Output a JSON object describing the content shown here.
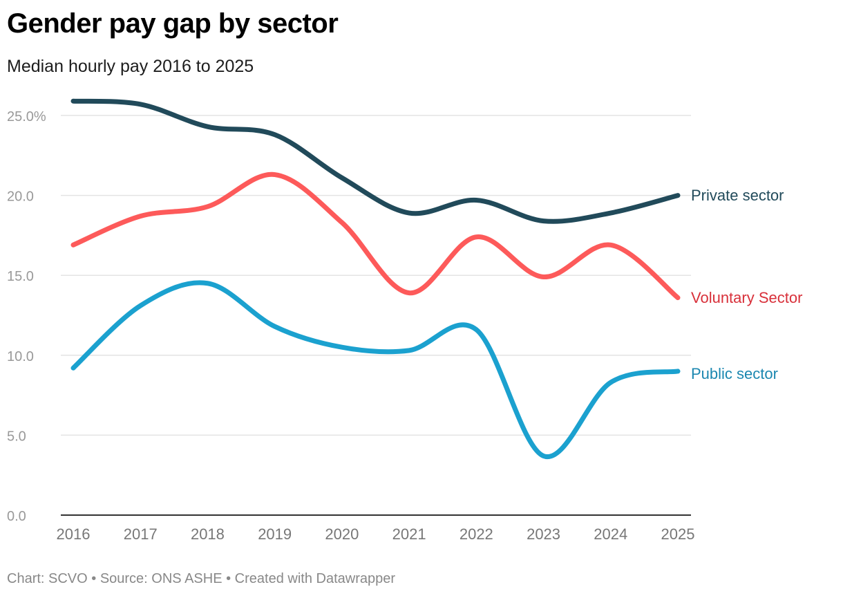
{
  "title": "Gender pay gap by sector",
  "subtitle": "Median hourly pay 2016 to 2025",
  "footer": "Chart: SCVO • Source: ONS ASHE • Created with Datawrapper",
  "chart_data": {
    "type": "line",
    "x": [
      2016,
      2017,
      2018,
      2019,
      2020,
      2021,
      2022,
      2023,
      2024,
      2025
    ],
    "ylim": [
      0,
      25
    ],
    "yticks": [
      "0.0",
      "5.0",
      "10.0",
      "15.0",
      "20.0",
      "25.0%"
    ],
    "ytick_values": [
      0,
      5,
      10,
      15,
      20,
      25
    ],
    "grid": true,
    "legend": "direct labels at line ends",
    "series": [
      {
        "name": "Private sector",
        "color": "#214a5a",
        "label_color": "#214a5a",
        "values": [
          25.9,
          25.7,
          24.3,
          23.8,
          21.1,
          18.9,
          19.7,
          18.4,
          18.9,
          20.0
        ]
      },
      {
        "name": "Voluntary Sector",
        "color": "#fd5a5a",
        "label_color": "#d8303a",
        "values": [
          16.9,
          18.7,
          19.3,
          21.3,
          18.3,
          13.9,
          17.4,
          14.9,
          16.9,
          13.6
        ]
      },
      {
        "name": "Public sector",
        "color": "#1ba1cf",
        "label_color": "#1b87b0",
        "values": [
          9.2,
          13.1,
          14.5,
          11.8,
          10.5,
          10.3,
          11.6,
          3.7,
          8.3,
          9.0
        ]
      }
    ]
  }
}
